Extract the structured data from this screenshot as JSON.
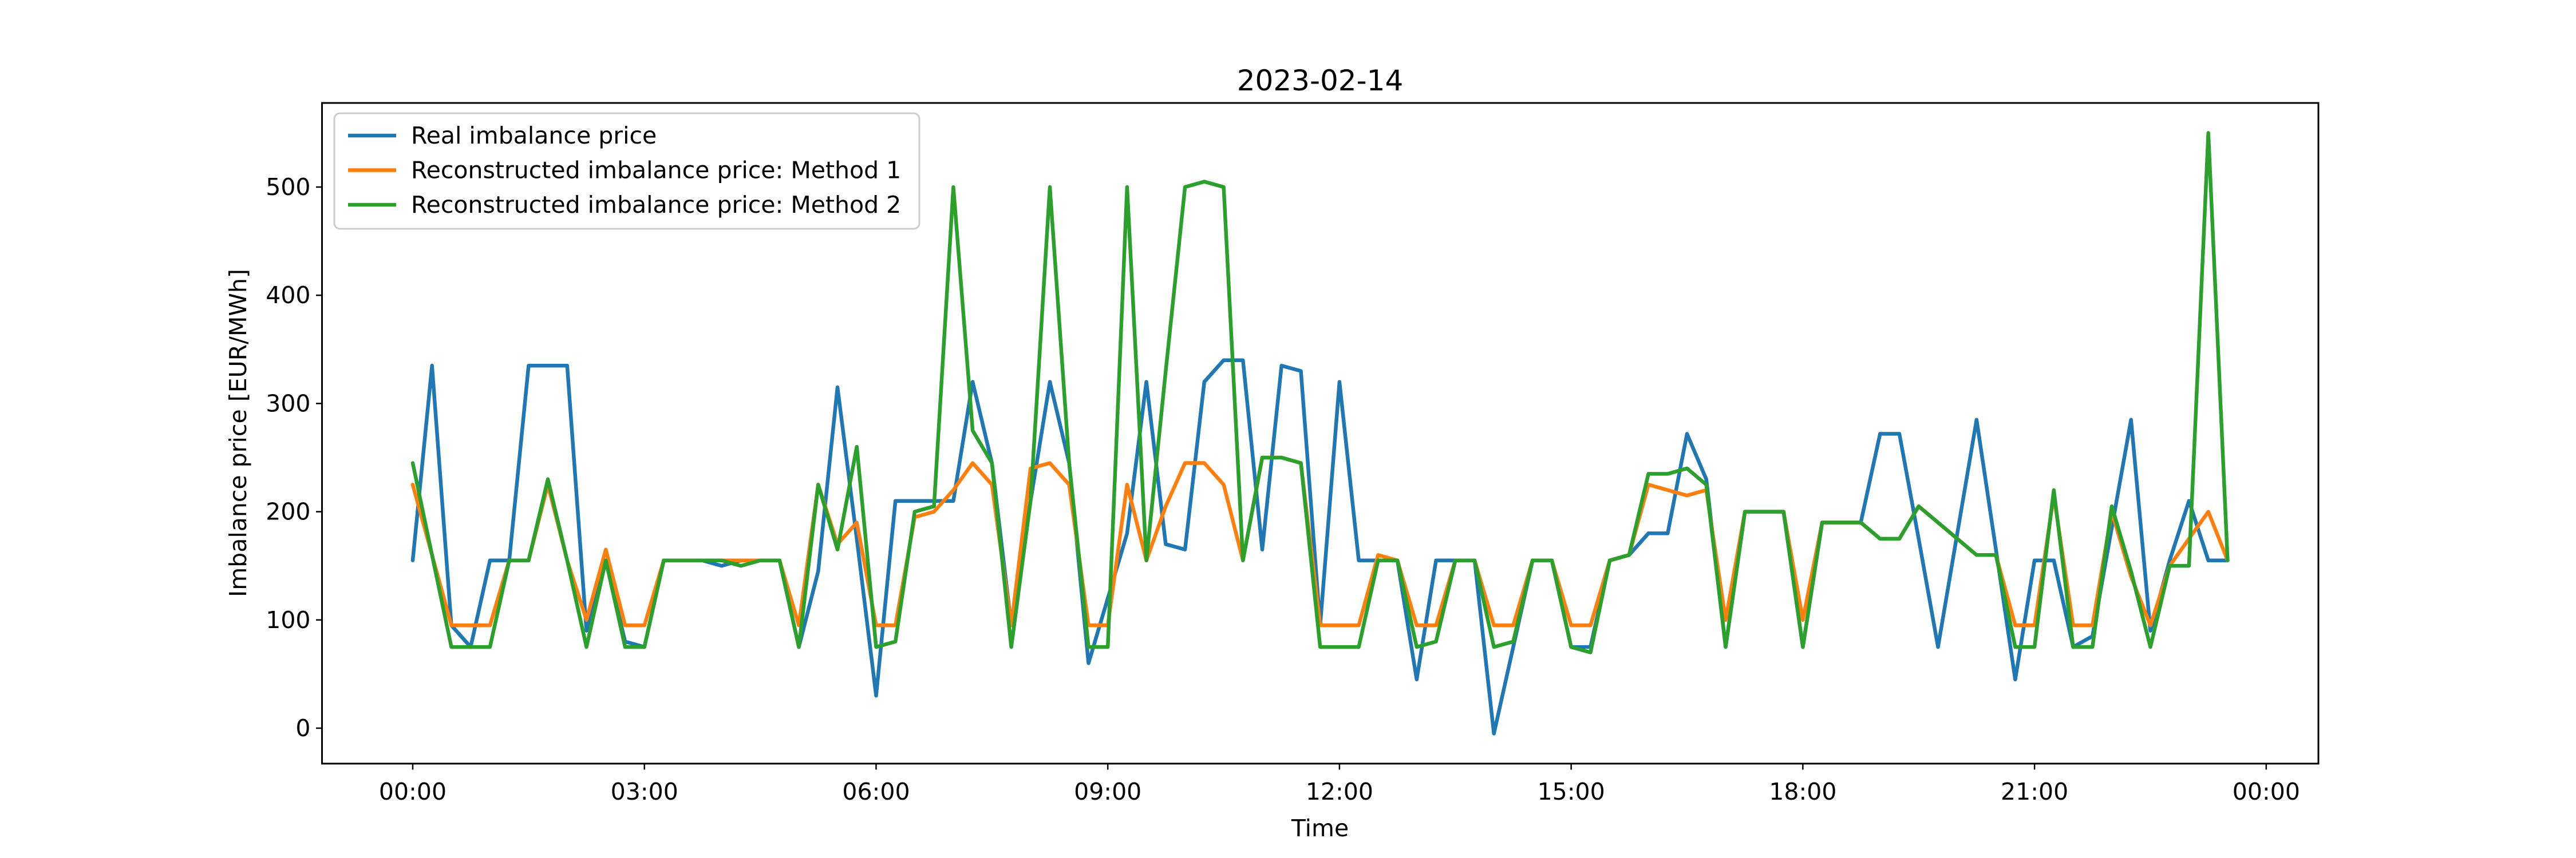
{
  "title": "2023-02-14",
  "axes": {
    "xlabel": "Time",
    "ylabel": "Imbalance price [EUR/MWh]",
    "yticks": [
      0,
      100,
      200,
      300,
      400,
      500
    ],
    "xticks": {
      "hours": [
        0,
        3,
        6,
        9,
        12,
        15,
        18,
        21,
        24
      ],
      "labels": [
        "00:00",
        "03:00",
        "06:00",
        "09:00",
        "12:00",
        "15:00",
        "18:00",
        "21:00",
        "00:00"
      ]
    }
  },
  "legend": {
    "entries": [
      {
        "label": "Real imbalance price",
        "color": "#1f77b4"
      },
      {
        "label": "Reconstructed imbalance price: Method 1",
        "color": "#ff7f0e"
      },
      {
        "label": "Reconstructed imbalance price: Method 2",
        "color": "#2ca02c"
      }
    ]
  },
  "chart_data": {
    "type": "line",
    "title": "2023-02-14",
    "xlabel": "Time",
    "ylabel": "Imbalance price [EUR/MWh]",
    "x_start_hour": 0,
    "x_step_hours": 0.25,
    "x_end_hour": 23.5,
    "ylim_ticks": [
      0,
      500
    ],
    "grid": false,
    "legend_position": "upper left",
    "series": [
      {
        "name": "Real imbalance price",
        "color": "#1f77b4",
        "values": [
          155,
          335,
          95,
          75,
          155,
          155,
          335,
          335,
          335,
          90,
          155,
          80,
          75,
          155,
          155,
          155,
          150,
          155,
          155,
          155,
          75,
          145,
          315,
          175,
          30,
          210,
          210,
          210,
          210,
          320,
          245,
          95,
          210,
          320,
          245,
          60,
          120,
          180,
          320,
          170,
          165,
          320,
          340,
          340,
          165,
          335,
          330,
          95,
          320,
          155,
          155,
          155,
          45,
          155,
          155,
          155,
          -5,
          75,
          155,
          155,
          75,
          75,
          155,
          160,
          180,
          180,
          272,
          230,
          75,
          200,
          200,
          200,
          75,
          190,
          190,
          190,
          272,
          272,
          175,
          75,
          180,
          285,
          165,
          45,
          155,
          155,
          75,
          85,
          185,
          285,
          90,
          155,
          210,
          155,
          155
        ]
      },
      {
        "name": "Reconstructed imbalance price: Method 1",
        "color": "#ff7f0e",
        "values": [
          225,
          160,
          95,
          95,
          95,
          155,
          155,
          225,
          155,
          100,
          165,
          95,
          95,
          155,
          155,
          155,
          155,
          155,
          155,
          155,
          95,
          225,
          170,
          190,
          95,
          95,
          195,
          200,
          220,
          245,
          225,
          95,
          240,
          245,
          225,
          95,
          95,
          225,
          155,
          205,
          245,
          245,
          225,
          155,
          250,
          250,
          245,
          95,
          95,
          95,
          160,
          155,
          95,
          95,
          155,
          155,
          95,
          95,
          155,
          155,
          95,
          95,
          155,
          160,
          225,
          220,
          215,
          220,
          100,
          200,
          200,
          200,
          100,
          190,
          190,
          190,
          175,
          175,
          205,
          190,
          175,
          160,
          160,
          95,
          95,
          215,
          95,
          95,
          200,
          140,
          95,
          150,
          175,
          200,
          155
        ]
      },
      {
        "name": "Reconstructed imbalance price: Method 2",
        "color": "#2ca02c",
        "values": [
          245,
          160,
          75,
          75,
          75,
          155,
          155,
          230,
          155,
          75,
          155,
          75,
          75,
          155,
          155,
          155,
          155,
          150,
          155,
          155,
          75,
          225,
          165,
          260,
          75,
          80,
          200,
          205,
          500,
          275,
          245,
          75,
          210,
          500,
          245,
          75,
          75,
          500,
          155,
          330,
          500,
          505,
          500,
          155,
          250,
          250,
          245,
          75,
          75,
          75,
          155,
          155,
          75,
          80,
          155,
          155,
          75,
          80,
          155,
          155,
          75,
          70,
          155,
          160,
          235,
          235,
          240,
          225,
          75,
          200,
          200,
          200,
          75,
          190,
          190,
          190,
          175,
          175,
          205,
          190,
          175,
          160,
          160,
          75,
          75,
          220,
          75,
          75,
          205,
          145,
          75,
          150,
          150,
          550,
          155
        ]
      }
    ]
  }
}
